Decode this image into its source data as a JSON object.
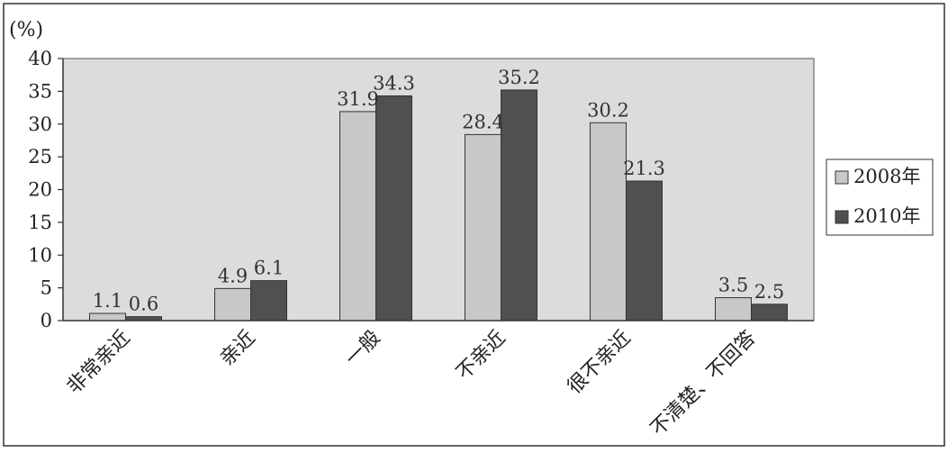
{
  "chart_data": {
    "type": "bar",
    "y_unit_label": "(%)",
    "categories": [
      "非常亲近",
      "亲近",
      "一般",
      "不亲近",
      "很不亲近",
      "不清楚、不回答"
    ],
    "series": [
      {
        "name": "2008年",
        "values": [
          1.1,
          4.9,
          31.9,
          28.4,
          30.2,
          3.5
        ],
        "color": "#c8c8c8"
      },
      {
        "name": "2010年",
        "values": [
          0.6,
          6.1,
          34.3,
          35.2,
          21.3,
          2.5
        ],
        "color": "#505050"
      }
    ],
    "ylim": [
      0,
      40
    ],
    "yticks": [
      0,
      5,
      10,
      15,
      20,
      25,
      30,
      35,
      40
    ],
    "grid": false,
    "plot_background": "#dcdcdc",
    "legend_position": "right"
  }
}
